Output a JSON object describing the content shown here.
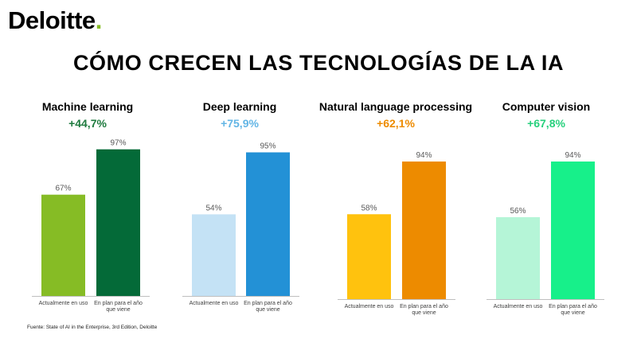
{
  "brand": {
    "logo_text": "Deloitte",
    "logo_dot": ".",
    "logo_dot_color": "#86bc25"
  },
  "title": "CÓMO CRECEN LAS TECNOLOGÍAS DE LA IA",
  "source": "Fuente: State of AI in the Enterprise, 3rd Edition, Deloitte",
  "chart_data": [
    {
      "type": "bar",
      "title": "Machine learning",
      "subtitle": "+44,7%",
      "subtitle_color": "#1e7a3e",
      "categories": [
        "Actualmente en uso",
        "En plan para el año que viene"
      ],
      "values": [
        67,
        97
      ],
      "value_labels": [
        "67%",
        "97%"
      ],
      "colors": [
        "#86bc25",
        "#046a38"
      ],
      "ylim": [
        0,
        100
      ],
      "grid": false
    },
    {
      "type": "bar",
      "title": "Deep learning",
      "subtitle": "+75,9%",
      "subtitle_color": "#62b5e5",
      "categories": [
        "Actualmente en uso",
        "En plan para el año que viene"
      ],
      "values": [
        54,
        95
      ],
      "value_labels": [
        "54%",
        "95%"
      ],
      "colors": [
        "#c4e2f5",
        "#2391d6"
      ],
      "ylim": [
        0,
        100
      ],
      "grid": false
    },
    {
      "type": "bar",
      "title": "Natural language processing",
      "subtitle": "+62,1%",
      "subtitle_color": "#ed8b00",
      "categories": [
        "Actualmente en uso",
        "En plan para el año que viene"
      ],
      "values": [
        58,
        94
      ],
      "value_labels": [
        "58%",
        "94%"
      ],
      "colors": [
        "#ffc20e",
        "#ed8b00"
      ],
      "ylim": [
        0,
        100
      ],
      "grid": false
    },
    {
      "type": "bar",
      "title": "Computer vision",
      "subtitle": "+67,8%",
      "subtitle_color": "#26d07c",
      "categories": [
        "Actualmente en uso",
        "En plan para el año que viene"
      ],
      "values": [
        56,
        94
      ],
      "value_labels": [
        "56%",
        "94%"
      ],
      "colors": [
        "#b5f5d7",
        "#17f08a"
      ],
      "ylim": [
        0,
        100
      ],
      "grid": false
    }
  ]
}
